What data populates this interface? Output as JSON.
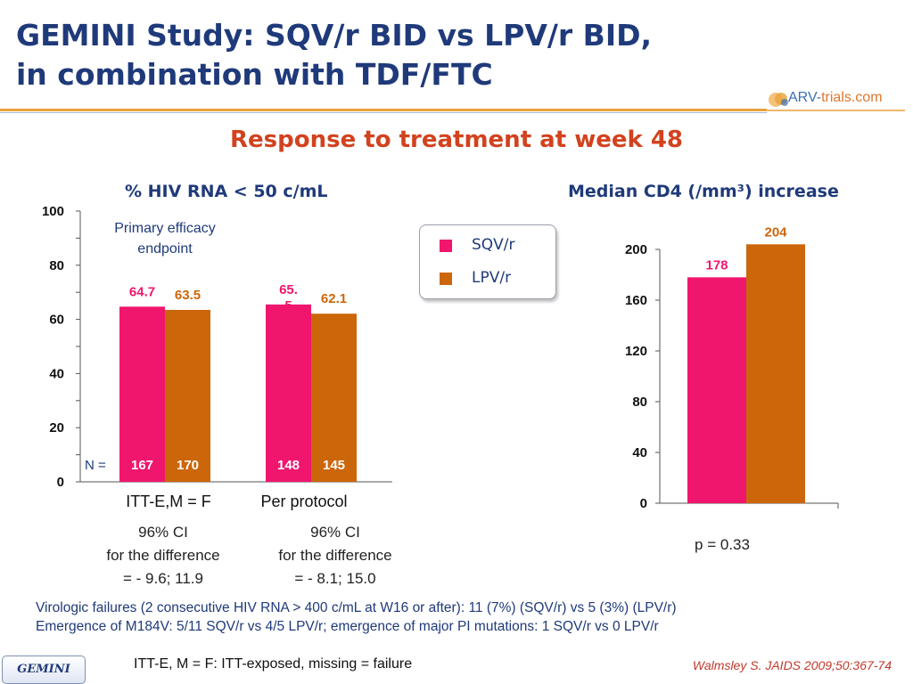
{
  "slide": {
    "title_line1": "GEMINI Study: SQV/r BID vs LPV/r BID,",
    "title_line2": "in combination with TDF/FTC",
    "subtitle": "Response to treatment at week 48",
    "logo_prefix": "ARV-",
    "logo_trials": "trials",
    "logo_suffix": ".com",
    "badge": "GEMINI",
    "definition_note": "ITT-E, M = F: ITT-exposed, missing = failure",
    "reference": "Walmsley S. JAIDS 2009;50:367-74",
    "footnote_line1": "Virologic failures (2 consecutive HIV RNA > 400 c/mL at W16 or after): 11 (7%) (SQV/r) vs 5 (3%) (LPV/r)",
    "footnote_line2": "Emergence of M184V: 5/11 SQV/r vs 4/5 LPV/r; emergence of major PI mutations: 1 SQV/r vs 0 LPV/r"
  },
  "colors": {
    "sqv": "#f0166e",
    "lpv": "#cc660a",
    "title": "#1f3a7a",
    "subtitle": "#d2421e"
  },
  "legend": {
    "items": [
      {
        "label": "SQV/r",
        "color": "#f0166e"
      },
      {
        "label": "LPV/r",
        "color": "#cc660a"
      }
    ]
  },
  "chart_data": [
    {
      "type": "bar",
      "title": "% HIV RNA < 50 c/mL",
      "annotation": "Primary efficacy endpoint",
      "categories": [
        "ITT-E,M = F",
        "Per protocol"
      ],
      "series": [
        {
          "name": "SQV/r",
          "values": [
            64.7,
            65.5
          ],
          "labels": [
            "64.7",
            "65.\n5"
          ],
          "n": [
            "167",
            "148"
          ]
        },
        {
          "name": "LPV/r",
          "values": [
            63.5,
            62.1
          ],
          "labels": [
            "63.5",
            "62.1"
          ],
          "n": [
            "170",
            "145"
          ]
        }
      ],
      "n_label": "N =",
      "ylim": [
        0,
        100
      ],
      "yticks": [
        0,
        20,
        40,
        60,
        80,
        100
      ],
      "captions": [
        [
          "96% CI",
          "for the difference",
          "= - 9.6; 11.9"
        ],
        [
          "96% CI",
          "for the difference",
          "= - 8.1; 15.0"
        ]
      ]
    },
    {
      "type": "bar",
      "title": "Median CD4 (/mm³) increase",
      "categories": [
        ""
      ],
      "series": [
        {
          "name": "SQV/r",
          "values": [
            178
          ],
          "labels": [
            "178"
          ]
        },
        {
          "name": "LPV/r",
          "values": [
            204
          ],
          "labels": [
            "204"
          ]
        }
      ],
      "ylim": [
        0,
        200
      ],
      "yticks": [
        0,
        40,
        80,
        120,
        160,
        200
      ],
      "pvalue": "p = 0.33"
    }
  ]
}
